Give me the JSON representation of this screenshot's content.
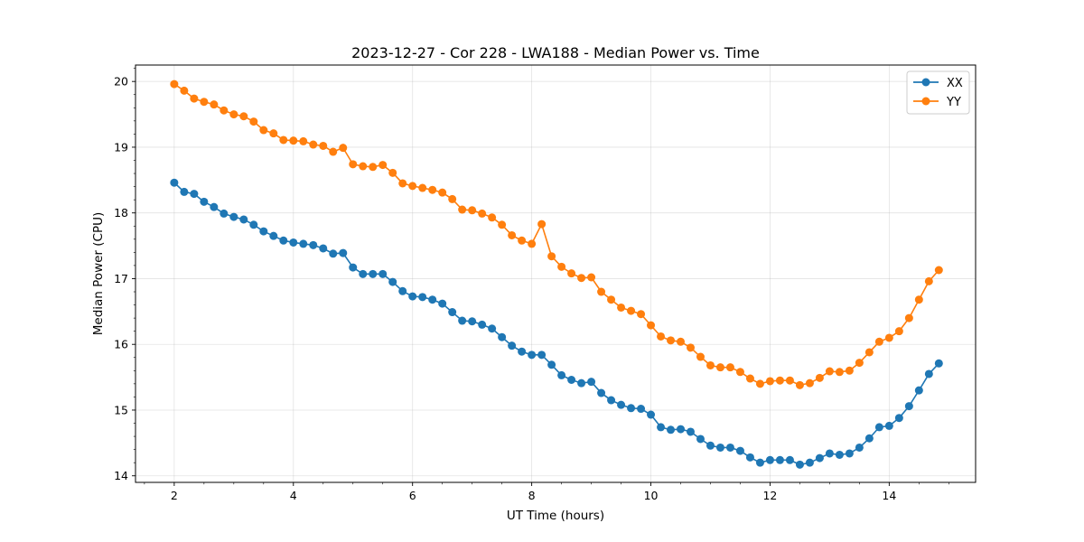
{
  "chart_data": {
    "type": "line",
    "title": "2023-12-27 - Cor 228 - LWA188 - Median Power vs. Time",
    "xlabel": "UT Time (hours)",
    "ylabel": "Median Power (CPU)",
    "xlim": [
      1.35,
      15.45
    ],
    "ylim": [
      13.9,
      20.25
    ],
    "xticks": [
      2,
      4,
      6,
      8,
      10,
      12,
      14
    ],
    "yticks": [
      14,
      15,
      16,
      17,
      18,
      19,
      20
    ],
    "x_minor_step": 0.5,
    "y_minor_step": 0.2,
    "grid": true,
    "legend_position": "top-right",
    "marker": "circle",
    "x": [
      2.0,
      2.1667,
      2.3333,
      2.5,
      2.6667,
      2.8333,
      3.0,
      3.1667,
      3.3333,
      3.5,
      3.6667,
      3.8333,
      4.0,
      4.1667,
      4.3333,
      4.5,
      4.6667,
      4.8333,
      5.0,
      5.1667,
      5.3333,
      5.5,
      5.6667,
      5.8333,
      6.0,
      6.1667,
      6.3333,
      6.5,
      6.6667,
      6.8333,
      7.0,
      7.1667,
      7.3333,
      7.5,
      7.6667,
      7.8333,
      8.0,
      8.1667,
      8.3333,
      8.5,
      8.6667,
      8.8333,
      9.0,
      9.1667,
      9.3333,
      9.5,
      9.6667,
      9.8333,
      10.0,
      10.1667,
      10.3333,
      10.5,
      10.6667,
      10.8333,
      11.0,
      11.1667,
      11.3333,
      11.5,
      11.6667,
      11.8333,
      12.0,
      12.1667,
      12.3333,
      12.5,
      12.6667,
      12.8333,
      13.0,
      13.1667,
      13.3333,
      13.5,
      13.6667,
      13.8333,
      14.0,
      14.1667,
      14.3333,
      14.5,
      14.6667,
      14.8333
    ],
    "series": [
      {
        "name": "XX",
        "color": "#1f77b4",
        "values": [
          18.46,
          18.32,
          18.29,
          18.17,
          18.09,
          17.99,
          17.94,
          17.9,
          17.82,
          17.72,
          17.65,
          17.58,
          17.55,
          17.53,
          17.51,
          17.46,
          17.38,
          17.39,
          17.17,
          17.07,
          17.07,
          17.07,
          16.95,
          16.81,
          16.73,
          16.72,
          16.68,
          16.62,
          16.49,
          16.36,
          16.35,
          16.3,
          16.24,
          16.11,
          15.98,
          15.89,
          15.84,
          15.84,
          15.69,
          15.53,
          15.46,
          15.41,
          15.43,
          15.26,
          15.15,
          15.08,
          15.03,
          15.02,
          14.93,
          14.74,
          14.7,
          14.71,
          14.67,
          14.56,
          14.46,
          14.43,
          14.43,
          14.38,
          14.28,
          14.2,
          14.24,
          14.24,
          14.24,
          14.17,
          14.2,
          14.27,
          14.34,
          14.32,
          14.34,
          14.43,
          14.57,
          14.74,
          14.76,
          14.88,
          15.06,
          15.3,
          15.55,
          15.71
        ]
      },
      {
        "name": "YY",
        "color": "#ff7f0e",
        "values": [
          19.96,
          19.86,
          19.74,
          19.69,
          19.65,
          19.56,
          19.5,
          19.47,
          19.39,
          19.26,
          19.21,
          19.11,
          19.1,
          19.09,
          19.04,
          19.02,
          18.93,
          18.99,
          18.74,
          18.71,
          18.7,
          18.73,
          18.61,
          18.45,
          18.41,
          18.38,
          18.35,
          18.31,
          18.21,
          18.05,
          18.04,
          17.99,
          17.93,
          17.82,
          17.66,
          17.58,
          17.53,
          17.83,
          17.34,
          17.18,
          17.08,
          17.01,
          17.02,
          16.8,
          16.68,
          16.56,
          16.51,
          16.46,
          16.29,
          16.12,
          16.06,
          16.04,
          15.95,
          15.81,
          15.68,
          15.65,
          15.65,
          15.58,
          15.48,
          15.4,
          15.44,
          15.45,
          15.45,
          15.38,
          15.41,
          15.49,
          15.59,
          15.58,
          15.6,
          15.72,
          15.88,
          16.04,
          16.1,
          16.2,
          16.4,
          16.68,
          16.96,
          17.13
        ]
      }
    ]
  }
}
